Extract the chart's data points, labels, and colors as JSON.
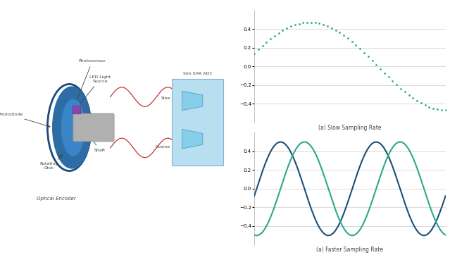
{
  "bg_color": "#ffffff",
  "top_plot_caption": "(a) Slow Sampling Rate",
  "bottom_plot_caption": "(a) Faster Sampling Rate",
  "slow_ylim": [
    -0.6,
    0.6
  ],
  "fast_ylim": [
    -0.6,
    0.6
  ],
  "slow_yticks": [
    -0.4,
    -0.2,
    0,
    0.2,
    0.4
  ],
  "fast_yticks": [
    -0.4,
    -0.2,
    0,
    0.2,
    0.4
  ],
  "sine_color": "#2aaa8a",
  "cosine_color": "#1a4f7a",
  "dot_color": "#2aaa8a",
  "wave_color": "#c0392b",
  "adc_fill": "#b8dff0",
  "adc_border": "#7fb3d3",
  "encoder_disk_outer": "#2e6da4",
  "encoder_disk_inner": "#3a85c8",
  "encoder_disk_rim": "#1a4a7a",
  "shaft_color": "#b0b0b0",
  "label_color": "#444444",
  "sim_sar_label": "Sim SAR ADC",
  "sine_label": "Sine",
  "cosine_label": "Cosine",
  "photosensor_label": "Photosensor",
  "led_label": "LED Light\nSource",
  "photodiode_label": "Photodiode",
  "shaft_label": "Shaft",
  "rotating_disk_label": "Rotating\nDisk",
  "optical_encoder_label": "Optical Encoder"
}
